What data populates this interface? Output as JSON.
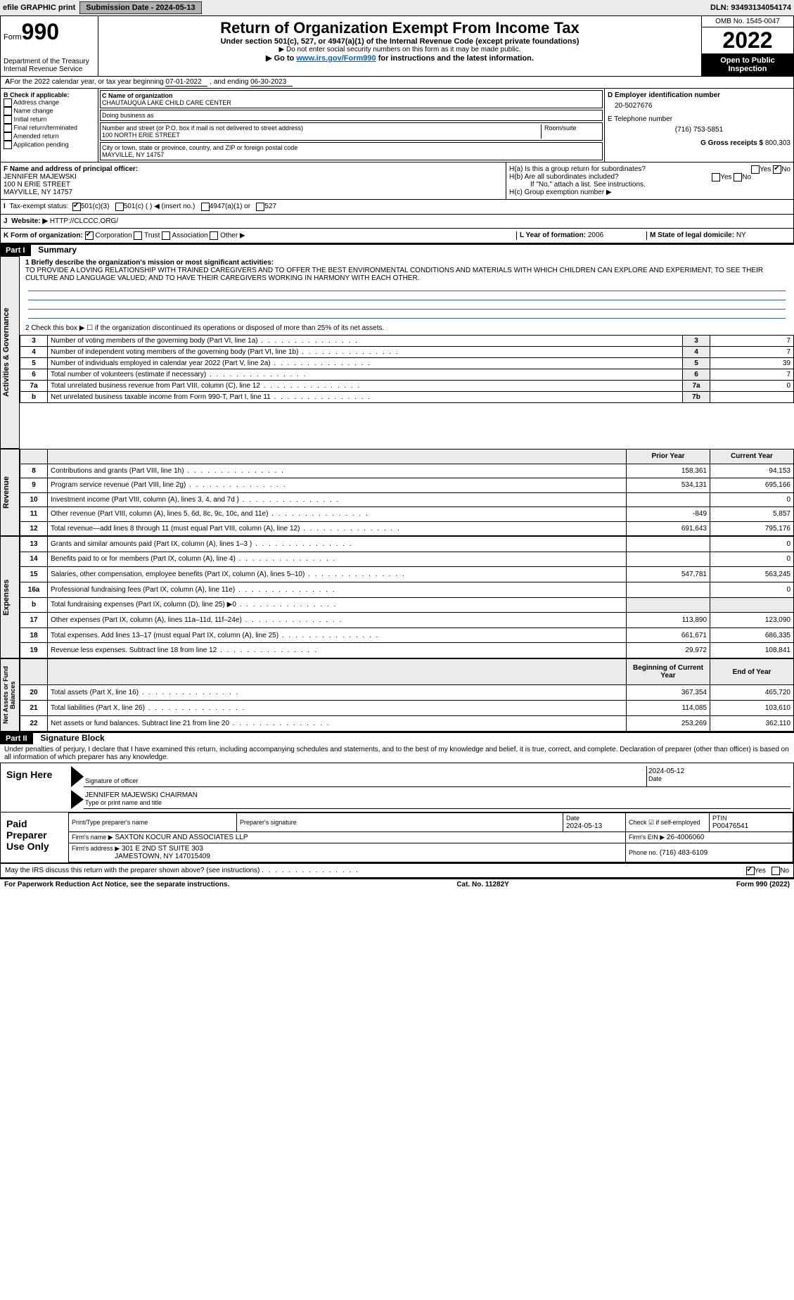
{
  "topbar": {
    "efile": "efile GRAPHIC print",
    "subdate_label": "Submission Date - 2024-05-13",
    "dln": "DLN: 93493134054174"
  },
  "header": {
    "form_small": "Form",
    "form_num": "990",
    "title": "Return of Organization Exempt From Income Tax",
    "sub1": "Under section 501(c), 527, or 4947(a)(1) of the Internal Revenue Code (except private foundations)",
    "sub2": "▶ Do not enter social security numbers on this form as it may be made public.",
    "goto_pre": "▶ Go to ",
    "goto_link": "www.irs.gov/Form990",
    "goto_post": " for instructions and the latest information.",
    "dept": "Department of the Treasury",
    "irs": "Internal Revenue Service",
    "omb": "OMB No. 1545-0047",
    "year": "2022",
    "open1": "Open to Public",
    "open2": "Inspection"
  },
  "A": {
    "text_pre": "For the 2022 calendar year, or tax year beginning ",
    "begin": "07-01-2022",
    "mid": " , and ending ",
    "end": "06-30-2023"
  },
  "B": {
    "label": "B Check if applicable:",
    "items": [
      "Address change",
      "Name change",
      "Initial return",
      "Final return/terminated",
      "Amended return",
      "Application pending"
    ]
  },
  "C": {
    "name_lbl": "C Name of organization",
    "name": "CHAUTAUQUA LAKE CHILD CARE CENTER",
    "dba_lbl": "Doing business as",
    "dba": "",
    "street_lbl": "Number and street (or P.O. box if mail is not delivered to street address)",
    "room_lbl": "Room/suite",
    "street": "100 NORTH ERIE STREET",
    "city_lbl": "City or town, state or province, country, and ZIP or foreign postal code",
    "city": "MAYVILLE, NY  14757"
  },
  "D": {
    "lbl": "D Employer identification number",
    "val": "20-5027676"
  },
  "E": {
    "lbl": "E Telephone number",
    "val": "(716) 753-5851"
  },
  "G": {
    "lbl": "G Gross receipts $",
    "val": "800,303"
  },
  "F": {
    "lbl": "F  Name and address of principal officer:",
    "name": "JENNIFER MAJEWSKI",
    "street": "100 N ERIE STREET",
    "city": "MAYVILLE, NY  14757"
  },
  "H": {
    "a": "H(a)  Is this a group return for subordinates?",
    "b": "H(b)  Are all subordinates included?",
    "attach": "If \"No,\" attach a list. See instructions.",
    "c": "H(c)  Group exemption number ▶",
    "yes": "Yes",
    "no": "No"
  },
  "I": {
    "lbl": "Tax-exempt status:",
    "opts": [
      "501(c)(3)",
      "501(c) (  ) ◀ (insert no.)",
      "4947(a)(1) or",
      "527"
    ]
  },
  "J": {
    "lbl": "Website: ▶",
    "val": "HTTP://CLCCC.ORG/"
  },
  "K": {
    "lbl": "K Form of organization:",
    "opts": [
      "Corporation",
      "Trust",
      "Association",
      "Other ▶"
    ]
  },
  "L": {
    "lbl": "L Year of formation:",
    "val": "2006"
  },
  "M": {
    "lbl": "M State of legal domicile:",
    "val": "NY"
  },
  "part1": {
    "hdr": "Part I",
    "title": "Summary",
    "q1": "1  Briefly describe the organization's mission or most significant activities:",
    "mission": "TO PROVIDE A LOVING RELATIONSHIP WITH TRAINED CAREGIVERS AND TO OFFER THE BEST ENVIRONMENTAL CONDITIONS AND MATERIALS WITH WHICH CHILDREN CAN EXPLORE AND EXPERIMENT; TO SEE THEIR CULTURE AND LANGUAGE VALUED; AND TO HAVE THEIR CAREGIVERS WORKING IN HARMONY WITH EACH OTHER.",
    "q2": "2   Check this box ▶ ☐  if the organization discontinued its operations or disposed of more than 25% of its net assets.",
    "side_ag": "Activities & Governance",
    "side_rev": "Revenue",
    "side_exp": "Expenses",
    "side_net": "Net Assets or Fund Balances",
    "rows_ag": [
      {
        "n": "3",
        "d": "Number of voting members of the governing body (Part VI, line 1a)",
        "box": "3",
        "v": "7"
      },
      {
        "n": "4",
        "d": "Number of independent voting members of the governing body (Part VI, line 1b)",
        "box": "4",
        "v": "7"
      },
      {
        "n": "5",
        "d": "Number of individuals employed in calendar year 2022 (Part V, line 2a)",
        "box": "5",
        "v": "39"
      },
      {
        "n": "6",
        "d": "Total number of volunteers (estimate if necessary)",
        "box": "6",
        "v": "7"
      },
      {
        "n": "7a",
        "d": "Total unrelated business revenue from Part VIII, column (C), line 12",
        "box": "7a",
        "v": "0"
      },
      {
        "n": "b",
        "d": "Net unrelated business taxable income from Form 990-T, Part I, line 11",
        "box": "7b",
        "v": ""
      }
    ],
    "col_prior": "Prior Year",
    "col_curr": "Current Year",
    "rows_rev": [
      {
        "n": "8",
        "d": "Contributions and grants (Part VIII, line 1h)",
        "p": "158,361",
        "c": "94,153"
      },
      {
        "n": "9",
        "d": "Program service revenue (Part VIII, line 2g)",
        "p": "534,131",
        "c": "695,166"
      },
      {
        "n": "10",
        "d": "Investment income (Part VIII, column (A), lines 3, 4, and 7d )",
        "p": "",
        "c": "0"
      },
      {
        "n": "11",
        "d": "Other revenue (Part VIII, column (A), lines 5, 6d, 8c, 9c, 10c, and 11e)",
        "p": "-849",
        "c": "5,857"
      },
      {
        "n": "12",
        "d": "Total revenue—add lines 8 through 11 (must equal Part VIII, column (A), line 12)",
        "p": "691,643",
        "c": "795,176"
      }
    ],
    "rows_exp": [
      {
        "n": "13",
        "d": "Grants and similar amounts paid (Part IX, column (A), lines 1–3 )",
        "p": "",
        "c": "0"
      },
      {
        "n": "14",
        "d": "Benefits paid to or for members (Part IX, column (A), line 4)",
        "p": "",
        "c": "0"
      },
      {
        "n": "15",
        "d": "Salaries, other compensation, employee benefits (Part IX, column (A), lines 5–10)",
        "p": "547,781",
        "c": "563,245"
      },
      {
        "n": "16a",
        "d": "Professional fundraising fees (Part IX, column (A), line 11e)",
        "p": "",
        "c": "0"
      },
      {
        "n": "b",
        "d": "Total fundraising expenses (Part IX, column (D), line 25) ▶0",
        "p": "SHADE",
        "c": "SHADE"
      },
      {
        "n": "17",
        "d": "Other expenses (Part IX, column (A), lines 11a–11d, 11f–24e)",
        "p": "113,890",
        "c": "123,090"
      },
      {
        "n": "18",
        "d": "Total expenses. Add lines 13–17 (must equal Part IX, column (A), line 25)",
        "p": "661,671",
        "c": "686,335"
      },
      {
        "n": "19",
        "d": "Revenue less expenses. Subtract line 18 from line 12",
        "p": "29,972",
        "c": "108,841"
      }
    ],
    "col_boy": "Beginning of Current Year",
    "col_eoy": "End of Year",
    "rows_net": [
      {
        "n": "20",
        "d": "Total assets (Part X, line 16)",
        "p": "367,354",
        "c": "465,720"
      },
      {
        "n": "21",
        "d": "Total liabilities (Part X, line 26)",
        "p": "114,085",
        "c": "103,610"
      },
      {
        "n": "22",
        "d": "Net assets or fund balances. Subtract line 21 from line 20",
        "p": "253,269",
        "c": "362,110"
      }
    ]
  },
  "part2": {
    "hdr": "Part II",
    "title": "Signature Block",
    "decl": "Under penalties of perjury, I declare that I have examined this return, including accompanying schedules and statements, and to the best of my knowledge and belief, it is true, correct, and complete. Declaration of preparer (other than officer) is based on all information of which preparer has any knowledge.",
    "sign_here": "Sign Here",
    "sig_officer": "Signature of officer",
    "sig_date": "Date",
    "sig_date_val": "2024-05-12",
    "sig_name": "JENNIFER MAJEWSKI CHAIRMAN",
    "sig_name_lbl": "Type or print name and title",
    "paid": "Paid Preparer Use Only",
    "prep_name_lbl": "Print/Type preparer's name",
    "prep_sig_lbl": "Preparer's signature",
    "prep_date_lbl": "Date",
    "prep_date": "2024-05-13",
    "prep_self_lbl": "Check ☑ if self-employed",
    "ptin_lbl": "PTIN",
    "ptin": "P00476541",
    "firm_name_lbl": "Firm's name    ▶",
    "firm_name": "SAXTON KOCUR AND ASSOCIATES LLP",
    "firm_ein_lbl": "Firm's EIN ▶",
    "firm_ein": "26-4006060",
    "firm_addr_lbl": "Firm's address ▶",
    "firm_addr1": "301 E 2ND ST SUITE 303",
    "firm_addr2": "JAMESTOWN, NY  147015409",
    "firm_phone_lbl": "Phone no.",
    "firm_phone": "(716) 483-6109",
    "discuss": "May the IRS discuss this return with the preparer shown above? (see instructions)",
    "yes": "Yes",
    "no": "No"
  },
  "footer": {
    "pra": "For Paperwork Reduction Act Notice, see the separate instructions.",
    "cat": "Cat. No. 11282Y",
    "form": "Form 990 (2022)"
  },
  "colors": {
    "linkblue": "#0066cc",
    "ruleblue": "#3b60aa",
    "shade": "#ebebeb"
  }
}
